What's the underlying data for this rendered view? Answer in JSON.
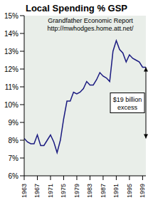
{
  "chart_data": {
    "type": "line",
    "title": "Local Spending % GSP",
    "subtitle": "Grandfather Economic Report",
    "source": "http://mwhodges.home.att.net/",
    "annotation": "$19 billion excess",
    "x": [
      1963,
      1964,
      1965,
      1966,
      1967,
      1968,
      1969,
      1970,
      1971,
      1972,
      1973,
      1974,
      1975,
      1976,
      1977,
      1978,
      1979,
      1980,
      1981,
      1982,
      1983,
      1984,
      1985,
      1986,
      1987,
      1988,
      1989,
      1990,
      1991,
      1992,
      1993,
      1994,
      1995,
      1996,
      1997,
      1998,
      1999,
      2000
    ],
    "values": [
      8.1,
      7.9,
      7.8,
      7.8,
      8.3,
      7.7,
      7.7,
      8.0,
      8.3,
      7.9,
      7.3,
      8.0,
      9.2,
      10.2,
      10.2,
      10.7,
      10.6,
      10.7,
      10.9,
      11.3,
      11.1,
      11.1,
      11.4,
      11.8,
      11.6,
      11.5,
      11.3,
      13.0,
      13.6,
      13.1,
      12.9,
      12.4,
      12.8,
      12.6,
      12.5,
      12.4,
      12.1,
      12.1
    ],
    "color": "#1a1a80",
    "xlim": [
      1963,
      2000
    ],
    "xticks": [
      1963,
      1967,
      1971,
      1975,
      1979,
      1983,
      1987,
      1991,
      1995,
      1999
    ],
    "ylim": [
      6,
      15
    ],
    "yticks": [
      {
        "value": 6,
        "label": "6%"
      },
      {
        "value": 7,
        "label": "7%"
      },
      {
        "value": 8,
        "label": "8%"
      },
      {
        "value": 9,
        "label": "9%"
      },
      {
        "value": 10,
        "label": "10%"
      },
      {
        "value": 11,
        "label": "11%"
      },
      {
        "value": 12,
        "label": "12%"
      },
      {
        "value": 13,
        "label": "13%"
      },
      {
        "value": 14,
        "label": "14%"
      },
      {
        "value": 15,
        "label": "15%"
      }
    ],
    "grid": false
  }
}
